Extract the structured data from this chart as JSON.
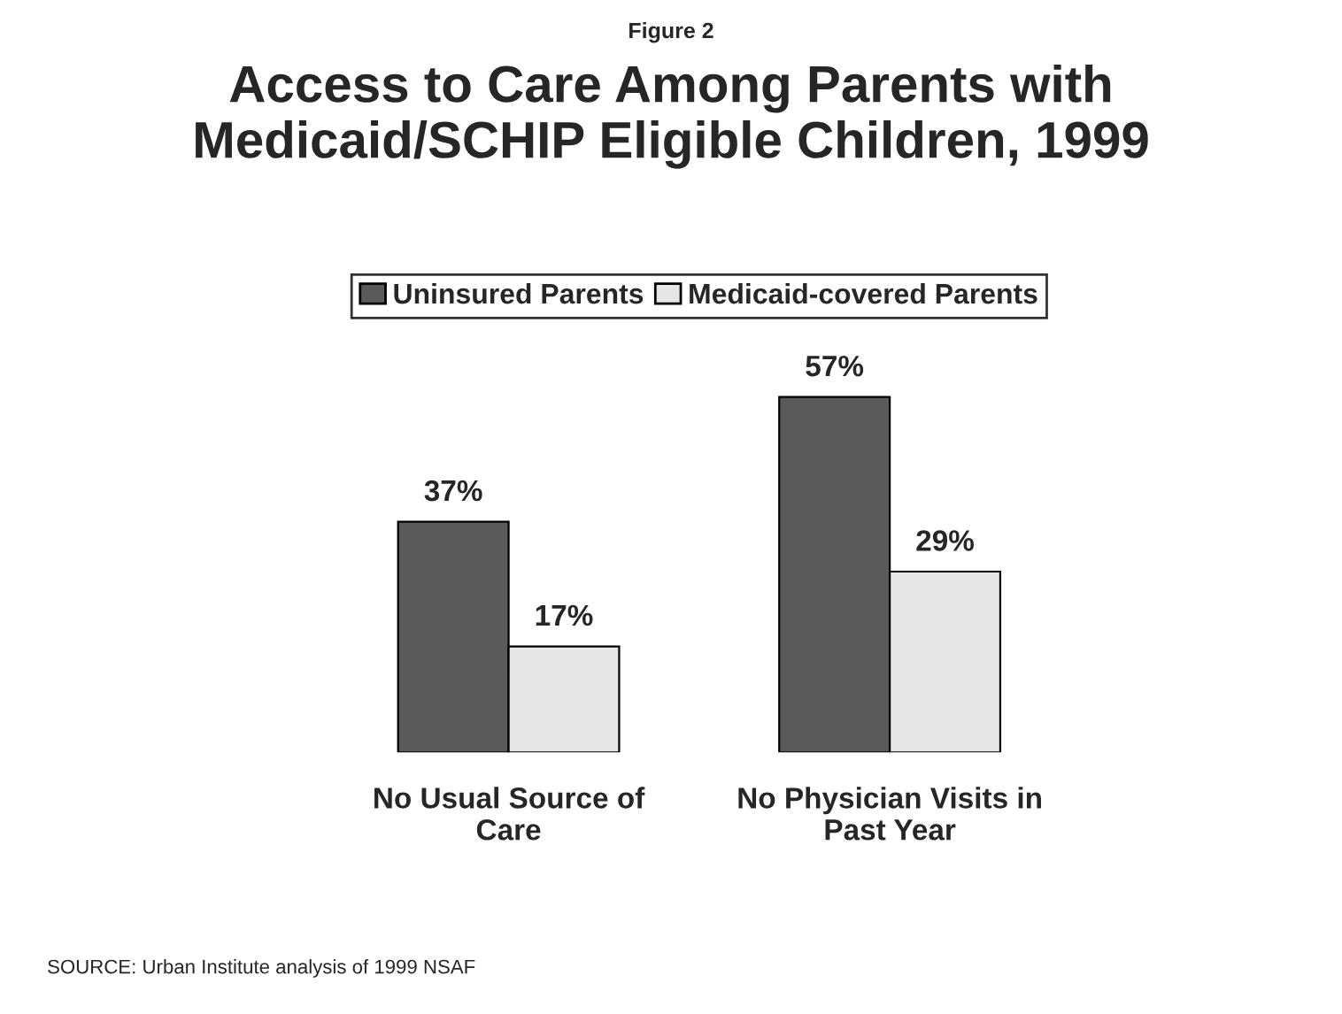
{
  "chart_data": {
    "type": "bar",
    "title": "Access to Care Among Parents with Medicaid/SCHIP Eligible Children, 1999",
    "categories": [
      "No Usual Source of Care",
      "No Physician Visits in Past Year"
    ],
    "series": [
      {
        "name": "Uninsured Parents",
        "color": "#5a5a5a",
        "values": [
          37,
          57
        ],
        "value_labels": [
          "37%",
          "57%"
        ]
      },
      {
        "name": "Medicaid-covered Parents",
        "color": "#e6e6e6",
        "values": [
          17,
          29
        ],
        "value_labels": [
          "17%",
          "29%"
        ]
      }
    ],
    "legend": "top",
    "grid": false,
    "annotations": [
      "Figure 2",
      "SOURCE: Urban Institute analysis of 1999 NSAF"
    ]
  }
}
